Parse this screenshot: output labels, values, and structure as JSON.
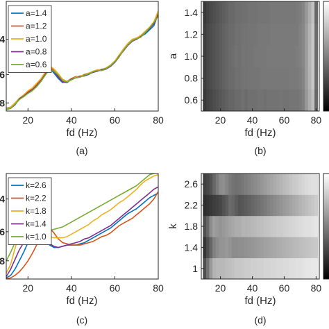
{
  "chart_data": [
    {
      "panel": "(a)",
      "type": "line",
      "xlabel": "fd (Hz)",
      "ylabel": "",
      "xlim": [
        10,
        80
      ],
      "xticks": [
        20,
        40,
        60,
        80
      ],
      "ytick_labels": [
        "",
        "8",
        "6",
        "4"
      ],
      "legend": "top-left",
      "x": [
        10,
        12,
        14,
        16,
        18,
        20,
        22,
        24,
        26,
        28,
        30,
        32,
        34,
        36,
        38,
        40,
        42,
        44,
        46,
        48,
        50,
        52,
        54,
        56,
        58,
        60,
        62,
        64,
        66,
        68,
        70,
        72,
        74,
        76,
        78,
        80
      ],
      "series": [
        {
          "name": "a=1.4",
          "color": "#0072BD",
          "values": [
            1.1,
            1.2,
            1.4,
            1.75,
            2.0,
            2.3,
            2.5,
            2.7,
            3.1,
            3.6,
            4.1,
            3.7,
            3.3,
            3.0,
            3.1,
            3.3,
            3.4,
            3.5,
            3.5,
            3.6,
            3.8,
            3.9,
            3.9,
            4.0,
            4.2,
            4.5,
            4.9,
            5.4,
            5.8,
            6.1,
            6.25,
            6.4,
            6.6,
            6.9,
            7.2,
            8.1
          ]
        },
        {
          "name": "a=1.2",
          "color": "#D95319",
          "values": [
            1.05,
            1.15,
            1.45,
            1.8,
            2.05,
            2.35,
            2.55,
            2.85,
            3.25,
            3.7,
            4.15,
            3.9,
            3.5,
            3.1,
            3.05,
            3.3,
            3.45,
            3.45,
            3.6,
            3.7,
            3.8,
            3.85,
            4.0,
            4.0,
            4.25,
            4.55,
            5.0,
            5.45,
            5.85,
            6.15,
            6.2,
            6.4,
            6.75,
            7.0,
            7.4,
            8.2
          ]
        },
        {
          "name": "a=1.0",
          "color": "#EDB120",
          "values": [
            1.05,
            1.2,
            1.5,
            1.85,
            2.1,
            2.4,
            2.6,
            2.95,
            3.3,
            3.8,
            4.25,
            4.0,
            3.65,
            3.25,
            3.1,
            3.25,
            3.4,
            3.5,
            3.55,
            3.7,
            3.85,
            3.95,
            3.95,
            4.1,
            4.3,
            4.6,
            5.05,
            5.5,
            5.9,
            6.2,
            6.3,
            6.5,
            6.8,
            7.1,
            7.5,
            8.3
          ]
        },
        {
          "name": "a=0.8",
          "color": "#7E2F8E",
          "values": [
            1.0,
            1.1,
            1.35,
            1.8,
            2.0,
            2.25,
            2.45,
            2.75,
            3.15,
            3.6,
            4.05,
            3.8,
            3.4,
            3.05,
            3.0,
            3.25,
            3.35,
            3.45,
            3.5,
            3.65,
            3.75,
            3.85,
            3.95,
            4.05,
            4.2,
            4.5,
            4.95,
            5.35,
            5.75,
            6.05,
            6.2,
            6.4,
            6.7,
            7.0,
            7.35,
            8.0
          ]
        },
        {
          "name": "a=0.6",
          "color": "#77AC30",
          "values": [
            1.0,
            1.1,
            1.4,
            1.75,
            1.95,
            2.2,
            2.4,
            2.7,
            3.1,
            3.55,
            4.0,
            3.85,
            3.55,
            3.15,
            3.05,
            3.2,
            3.35,
            3.4,
            3.55,
            3.65,
            3.8,
            3.9,
            3.9,
            4.05,
            4.25,
            4.55,
            4.9,
            5.4,
            5.8,
            6.1,
            6.25,
            6.35,
            6.7,
            7.05,
            7.45,
            7.9
          ]
        }
      ]
    },
    {
      "panel": "(b)",
      "type": "heatmap",
      "xlabel": "fd (Hz)",
      "ylabel": "a",
      "xlim": [
        8,
        82
      ],
      "ylim": [
        0.5,
        1.5
      ],
      "xticks": [
        20,
        40,
        60,
        80
      ],
      "yticks": [
        0.6,
        0.8,
        1.0,
        1.2,
        1.4
      ],
      "ytick_labels": [
        "0.6",
        "0.8",
        "1.0",
        "1.2",
        "1.4"
      ],
      "colormap": "gray",
      "rows": [
        0.6,
        0.8,
        1.0,
        1.2,
        1.4
      ],
      "fd_bins": [
        10,
        12,
        14,
        16,
        18,
        20,
        22,
        24,
        26,
        28,
        30,
        32,
        34,
        36,
        38,
        40,
        42,
        44,
        46,
        48,
        50,
        52,
        54,
        56,
        58,
        60,
        62,
        64,
        66,
        68,
        70,
        72,
        74,
        76,
        78,
        80
      ],
      "values": [
        [
          0.22,
          0.26,
          0.28,
          0.3,
          0.32,
          0.34,
          0.36,
          0.38,
          0.4,
          0.4,
          0.42,
          0.42,
          0.44,
          0.42,
          0.44,
          0.44,
          0.44,
          0.45,
          0.45,
          0.44,
          0.45,
          0.45,
          0.45,
          0.45,
          0.46,
          0.45,
          0.45,
          0.46,
          0.46,
          0.46,
          0.47,
          0.5,
          0.6,
          0.68,
          0.75,
          0.4
        ],
        [
          0.24,
          0.28,
          0.3,
          0.32,
          0.34,
          0.36,
          0.38,
          0.4,
          0.42,
          0.42,
          0.44,
          0.44,
          0.45,
          0.45,
          0.46,
          0.46,
          0.46,
          0.46,
          0.47,
          0.47,
          0.47,
          0.47,
          0.47,
          0.47,
          0.47,
          0.47,
          0.47,
          0.48,
          0.48,
          0.48,
          0.49,
          0.52,
          0.62,
          0.7,
          0.78,
          0.42
        ],
        [
          0.24,
          0.28,
          0.3,
          0.32,
          0.34,
          0.36,
          0.38,
          0.4,
          0.42,
          0.43,
          0.45,
          0.44,
          0.46,
          0.45,
          0.46,
          0.46,
          0.47,
          0.47,
          0.47,
          0.47,
          0.48,
          0.48,
          0.48,
          0.48,
          0.48,
          0.48,
          0.48,
          0.48,
          0.48,
          0.49,
          0.5,
          0.53,
          0.62,
          0.71,
          0.78,
          0.42
        ],
        [
          0.24,
          0.28,
          0.3,
          0.32,
          0.34,
          0.36,
          0.38,
          0.4,
          0.42,
          0.42,
          0.44,
          0.44,
          0.45,
          0.45,
          0.46,
          0.46,
          0.46,
          0.47,
          0.47,
          0.47,
          0.47,
          0.48,
          0.48,
          0.48,
          0.48,
          0.48,
          0.48,
          0.48,
          0.48,
          0.48,
          0.5,
          0.53,
          0.62,
          0.7,
          0.78,
          0.42
        ],
        [
          0.22,
          0.26,
          0.29,
          0.31,
          0.33,
          0.35,
          0.37,
          0.39,
          0.41,
          0.41,
          0.43,
          0.43,
          0.44,
          0.44,
          0.45,
          0.45,
          0.45,
          0.46,
          0.46,
          0.46,
          0.46,
          0.47,
          0.47,
          0.47,
          0.47,
          0.47,
          0.47,
          0.47,
          0.47,
          0.48,
          0.49,
          0.52,
          0.6,
          0.68,
          0.76,
          0.4
        ]
      ]
    },
    {
      "panel": "(c)",
      "type": "line",
      "xlabel": "fd (Hz)",
      "ylabel": "",
      "xlim": [
        10,
        80
      ],
      "xticks": [
        20,
        40,
        60,
        80
      ],
      "ytick_labels": [
        "",
        "8",
        "6",
        "4"
      ],
      "legend": "top-left",
      "x": [
        10,
        12,
        14,
        16,
        18,
        20,
        22,
        24,
        26,
        28,
        30,
        32,
        34,
        36,
        38,
        40,
        42,
        44,
        46,
        48,
        50,
        52,
        54,
        56,
        58,
        60,
        62,
        64,
        66,
        68,
        70,
        72,
        74,
        76,
        78,
        80
      ],
      "series": [
        {
          "name": "k=2.6",
          "color": "#0072BD",
          "values": [
            1.1,
            1.3,
            1.8,
            2.5,
            3.2,
            4.0,
            4.6,
            5.0,
            4.6,
            4.2,
            3.8,
            3.6,
            3.6,
            3.7,
            3.8,
            3.8,
            3.8,
            3.9,
            4.0,
            4.2,
            4.4,
            4.6,
            4.8,
            5.0,
            5.2,
            5.5,
            5.8,
            6.1,
            6.4,
            6.6,
            6.8,
            7.1,
            7.4,
            7.7,
            7.9,
            8.1
          ]
        },
        {
          "name": "k=2.2",
          "color": "#D95319",
          "values": [
            1.0,
            1.1,
            1.3,
            1.6,
            2.0,
            2.5,
            3.1,
            3.8,
            4.5,
            5.0,
            5.2,
            4.8,
            4.3,
            4.0,
            3.9,
            3.8,
            3.8,
            3.8,
            3.9,
            4.0,
            4.1,
            4.3,
            4.5,
            4.6,
            4.8,
            5.1,
            5.4,
            5.6,
            5.8,
            6.0,
            6.3,
            6.6,
            6.9,
            7.2,
            7.6,
            8.2
          ]
        },
        {
          "name": "k=1.8",
          "color": "#EDB120",
          "values": [
            1.5,
            2.2,
            3.5,
            4.8,
            5.2,
            4.9,
            4.6,
            4.8,
            4.9,
            4.7,
            4.5,
            4.4,
            4.4,
            4.4,
            4.5,
            4.7,
            4.9,
            5.1,
            5.3,
            5.5,
            5.8,
            6.0,
            6.3,
            6.5,
            6.7,
            7.0,
            7.3,
            7.5,
            7.8,
            8.1,
            8.4,
            8.8,
            9.1,
            9.3,
            9.5,
            9.6
          ]
        },
        {
          "name": "k=1.4",
          "color": "#7E2F8E",
          "values": [
            1.2,
            1.8,
            2.6,
            3.4,
            4.0,
            4.5,
            4.7,
            4.8,
            4.6,
            4.2,
            3.9,
            3.7,
            3.6,
            3.7,
            3.8,
            3.9,
            4.0,
            4.1,
            4.3,
            4.4,
            4.6,
            4.8,
            5.0,
            5.2,
            5.4,
            5.7,
            6.0,
            6.3,
            6.6,
            6.9,
            7.2,
            7.5,
            7.8,
            8.1,
            8.4,
            8.6
          ]
        },
        {
          "name": "k=1.0",
          "color": "#77AC30",
          "values": [
            2.5,
            3.2,
            4.0,
            4.5,
            4.7,
            4.6,
            4.6,
            4.7,
            4.8,
            4.9,
            5.0,
            5.1,
            5.2,
            5.3,
            5.5,
            5.7,
            5.9,
            6.1,
            6.3,
            6.5,
            6.7,
            6.9,
            7.1,
            7.3,
            7.5,
            7.7,
            7.9,
            8.1,
            8.3,
            8.5,
            8.7,
            9.0,
            9.3,
            9.6,
            9.7,
            9.75
          ]
        }
      ]
    },
    {
      "panel": "(d)",
      "type": "heatmap",
      "xlabel": "fd (Hz)",
      "ylabel": "k",
      "xlim": [
        8,
        82
      ],
      "ylim": [
        0.8,
        2.8
      ],
      "xticks": [
        20,
        40,
        60,
        80
      ],
      "yticks": [
        1.0,
        1.4,
        1.8,
        2.2,
        2.6
      ],
      "ytick_labels": [
        "1",
        "1.4",
        "1.8",
        "2.2",
        "2.6"
      ],
      "colormap": "gray",
      "rows": [
        1.0,
        1.4,
        1.8,
        2.2,
        2.6
      ],
      "fd_bins": [
        10,
        12,
        14,
        16,
        18,
        20,
        22,
        24,
        26,
        28,
        30,
        32,
        34,
        36,
        38,
        40,
        42,
        44,
        46,
        48,
        50,
        52,
        54,
        56,
        58,
        60,
        62,
        64,
        66,
        68,
        70,
        72,
        74,
        76,
        78,
        80
      ],
      "values": [
        [
          0.3,
          0.45,
          0.6,
          0.7,
          0.72,
          0.72,
          0.72,
          0.74,
          0.75,
          0.76,
          0.78,
          0.78,
          0.79,
          0.8,
          0.8,
          0.81,
          0.81,
          0.82,
          0.82,
          0.83,
          0.83,
          0.84,
          0.84,
          0.85,
          0.85,
          0.86,
          0.86,
          0.87,
          0.87,
          0.88,
          0.88,
          0.89,
          0.9,
          0.9,
          0.91,
          0.91
        ],
        [
          0.2,
          0.3,
          0.4,
          0.5,
          0.55,
          0.58,
          0.58,
          0.6,
          0.58,
          0.55,
          0.55,
          0.56,
          0.56,
          0.57,
          0.58,
          0.59,
          0.6,
          0.61,
          0.62,
          0.63,
          0.64,
          0.65,
          0.66,
          0.67,
          0.68,
          0.69,
          0.7,
          0.71,
          0.72,
          0.73,
          0.74,
          0.75,
          0.76,
          0.77,
          0.78,
          0.79
        ],
        [
          0.3,
          0.4,
          0.55,
          0.62,
          0.6,
          0.58,
          0.6,
          0.62,
          0.64,
          0.66,
          0.68,
          0.68,
          0.7,
          0.7,
          0.71,
          0.72,
          0.73,
          0.74,
          0.75,
          0.76,
          0.77,
          0.78,
          0.79,
          0.8,
          0.8,
          0.81,
          0.82,
          0.83,
          0.84,
          0.85,
          0.86,
          0.87,
          0.88,
          0.88,
          0.89,
          0.9
        ],
        [
          0.18,
          0.2,
          0.22,
          0.24,
          0.26,
          0.28,
          0.32,
          0.36,
          0.42,
          0.4,
          0.36,
          0.33,
          0.34,
          0.36,
          0.38,
          0.4,
          0.42,
          0.44,
          0.46,
          0.48,
          0.5,
          0.52,
          0.54,
          0.56,
          0.58,
          0.6,
          0.62,
          0.64,
          0.66,
          0.68,
          0.7,
          0.72,
          0.74,
          0.76,
          0.78,
          0.8
        ],
        [
          0.25,
          0.28,
          0.32,
          0.4,
          0.48,
          0.55,
          0.56,
          0.52,
          0.48,
          0.45,
          0.44,
          0.45,
          0.47,
          0.49,
          0.51,
          0.53,
          0.55,
          0.57,
          0.59,
          0.61,
          0.63,
          0.65,
          0.67,
          0.69,
          0.71,
          0.73,
          0.75,
          0.77,
          0.79,
          0.8,
          0.82,
          0.84,
          0.86,
          0.87,
          0.88,
          0.88
        ]
      ]
    }
  ]
}
